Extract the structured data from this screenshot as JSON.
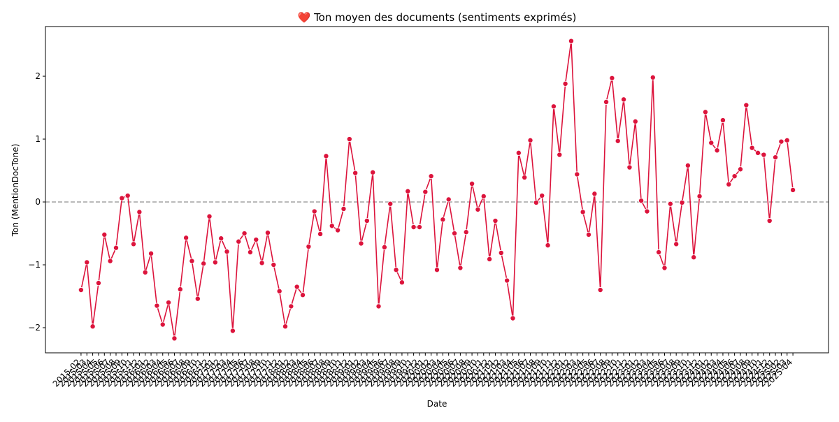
{
  "chart_data": {
    "type": "line",
    "title": "❤️ Ton moyen des documents (sentiments exprimés)",
    "xlabel": "Date",
    "ylabel": "Ton (MentionDocTone)",
    "categories": [
      "2015-02",
      "2015-03",
      "2015-04",
      "2015-05",
      "2015-06",
      "2015-07",
      "2015-08",
      "2015-09",
      "2015-10",
      "2015-11",
      "2015-12",
      "2016-01",
      "2016-02",
      "2016-03",
      "2016-04",
      "2016-05",
      "2016-06",
      "2016-07",
      "2016-08",
      "2016-09",
      "2016-10",
      "2016-11",
      "2016-12",
      "2017-01",
      "2017-02",
      "2017-03",
      "2017-04",
      "2017-05",
      "2017-06",
      "2017-07",
      "2017-08",
      "2017-09",
      "2017-10",
      "2017-11",
      "2017-12",
      "2018-01",
      "2018-02",
      "2018-03",
      "2018-04",
      "2018-05",
      "2018-06",
      "2018-07",
      "2018-08",
      "2018-09",
      "2018-10",
      "2018-11",
      "2018-12",
      "2019-01",
      "2019-02",
      "2019-03",
      "2019-04",
      "2019-05",
      "2019-06",
      "2019-07",
      "2019-08",
      "2019-09",
      "2019-10",
      "2019-11",
      "2019-12",
      "2020-01",
      "2020-02",
      "2020-03",
      "2020-04",
      "2020-05",
      "2020-06",
      "2020-07",
      "2020-08",
      "2020-09",
      "2020-10",
      "2020-11",
      "2020-12",
      "2021-01",
      "2021-02",
      "2021-03",
      "2021-04",
      "2021-05",
      "2021-06",
      "2021-07",
      "2021-08",
      "2021-09",
      "2021-10",
      "2021-11",
      "2021-12",
      "2022-01",
      "2022-02",
      "2022-03",
      "2022-04",
      "2022-05",
      "2022-06",
      "2022-07",
      "2022-08",
      "2022-09",
      "2022-10",
      "2022-11",
      "2022-12",
      "2023-01",
      "2023-02",
      "2023-03",
      "2023-04",
      "2023-05",
      "2023-06",
      "2023-07",
      "2023-08",
      "2023-09",
      "2023-10",
      "2023-11",
      "2023-12",
      "2024-01",
      "2024-02",
      "2024-03",
      "2024-04",
      "2024-05",
      "2024-06",
      "2024-07",
      "2024-08",
      "2024-09",
      "2024-10",
      "2024-11",
      "2024-12",
      "2025-01",
      "2025-02",
      "2025-03",
      "2025-04"
    ],
    "values": [
      -1.4,
      -0.96,
      -1.98,
      -1.29,
      -0.52,
      -0.94,
      -0.73,
      0.06,
      0.1,
      -0.67,
      -0.16,
      -1.12,
      -0.82,
      -1.65,
      -1.95,
      -1.6,
      -2.17,
      -1.39,
      -0.57,
      -0.94,
      -1.54,
      -0.98,
      -0.23,
      -0.96,
      -0.58,
      -0.79,
      -2.05,
      -0.63,
      -0.5,
      -0.8,
      -0.6,
      -0.97,
      -0.49,
      -1.0,
      -1.42,
      -1.98,
      -1.66,
      -1.35,
      -1.48,
      -0.71,
      -0.15,
      -0.51,
      0.73,
      -0.38,
      -0.45,
      -0.11,
      1.0,
      0.46,
      -0.66,
      -0.3,
      0.47,
      -1.66,
      -0.72,
      -0.03,
      -1.08,
      -1.28,
      0.17,
      -0.4,
      -0.4,
      0.16,
      0.41,
      -1.08,
      -0.28,
      0.04,
      -0.5,
      -1.05,
      -0.48,
      0.29,
      -0.12,
      0.09,
      -0.91,
      -0.3,
      -0.81,
      -1.25,
      -1.85,
      0.78,
      0.39,
      0.98,
      -0.01,
      0.1,
      -0.69,
      1.52,
      0.75,
      1.88,
      2.56,
      0.44,
      -0.16,
      -0.52,
      0.13,
      -1.4,
      1.59,
      1.97,
      0.97,
      1.63,
      0.55,
      1.28,
      0.02,
      -0.15,
      1.98,
      -0.8,
      -1.05,
      -0.03,
      -0.67,
      -0.01,
      0.58,
      -0.88,
      0.09,
      1.43,
      0.94,
      0.82,
      1.3,
      0.28,
      0.41,
      0.52,
      1.54,
      0.86,
      0.78,
      0.75,
      -0.3,
      0.71,
      0.96,
      0.98,
      0.19
    ],
    "color": "#dc143c",
    "ylim": [
      -2.4,
      2.79
    ],
    "yticks": [
      {
        "value": -2,
        "label": "−2"
      },
      {
        "value": -1,
        "label": "−1"
      },
      0,
      1,
      2
    ],
    "hline": 0,
    "grid": false
  }
}
